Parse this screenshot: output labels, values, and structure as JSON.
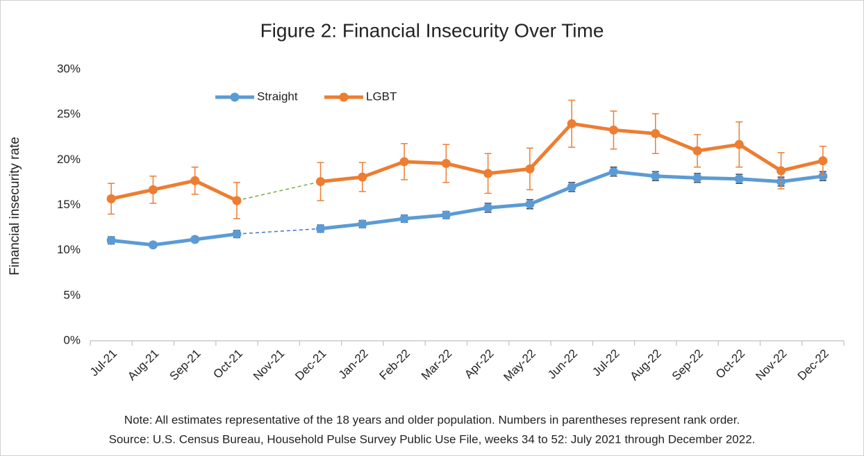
{
  "chart_data": {
    "type": "line",
    "title": "Figure 2: Financial Insecurity Over Time",
    "y_label": "Financial insecurity rate",
    "categories": [
      "Jul-21",
      "Aug-21",
      "Sep-21",
      "Oct-21",
      "Nov-21",
      "Dec-21",
      "Jan-22",
      "Feb-22",
      "Mar-22",
      "Apr-22",
      "May-22",
      "Jun-22",
      "Jul-22",
      "Aug-22",
      "Sep-22",
      "Oct-22",
      "Nov-22",
      "Dec-22"
    ],
    "series": [
      {
        "name": "Straight",
        "color": "#5b9bd5",
        "error_color": "#404040",
        "gap_line_color": "#4472c4",
        "values": [
          11.1,
          10.6,
          11.2,
          11.8,
          null,
          12.4,
          12.9,
          13.5,
          13.9,
          14.7,
          15.1,
          17.0,
          18.7,
          18.2,
          18.0,
          17.9,
          17.6,
          18.2
        ],
        "errors": [
          0.4,
          0.3,
          0.3,
          0.4,
          null,
          0.4,
          0.4,
          0.4,
          0.4,
          0.5,
          0.5,
          0.5,
          0.5,
          0.5,
          0.5,
          0.5,
          0.5,
          0.5
        ]
      },
      {
        "name": "LGBT",
        "color": "#ed7d31",
        "error_color": "#ed7d31",
        "gap_line_color": "#70ad47",
        "values": [
          15.7,
          16.7,
          17.7,
          15.5,
          null,
          17.6,
          18.1,
          19.8,
          19.6,
          18.5,
          19.0,
          24.0,
          23.3,
          22.9,
          21.0,
          21.7,
          18.8,
          19.9
        ],
        "errors": [
          1.7,
          1.5,
          1.5,
          2.0,
          null,
          2.1,
          1.6,
          2.0,
          2.1,
          2.2,
          2.3,
          2.6,
          2.1,
          2.2,
          1.8,
          2.5,
          2.0,
          1.6
        ]
      }
    ],
    "ylim": [
      0,
      30
    ],
    "yticks": [
      {
        "value": 0,
        "label": "0%"
      },
      {
        "value": 5,
        "label": "5%"
      },
      {
        "value": 10,
        "label": "10%"
      },
      {
        "value": 15,
        "label": "15%"
      },
      {
        "value": 20,
        "label": "20%"
      },
      {
        "value": 25,
        "label": "25%"
      },
      {
        "value": 30,
        "label": "30%"
      }
    ],
    "grid": false,
    "legend": "top",
    "notes": [
      "Note: All estimates representative of the 18 years and older population. Numbers in parentheses represent rank order.",
      "Source: U.S. Census Bureau, Household Pulse Survey Public Use File, weeks 34 to 52: July 2021 through December 2022."
    ]
  }
}
